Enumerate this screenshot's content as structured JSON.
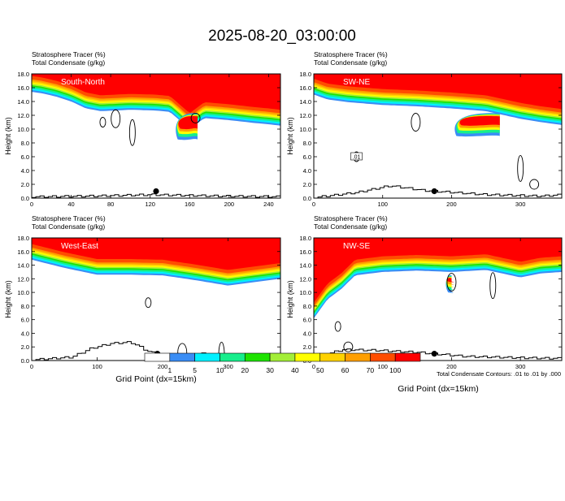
{
  "title": "2025-08-20_03:00:00",
  "legend_colorbar": {
    "colors": [
      "#ffffff",
      "#3a8df5",
      "#00f0ff",
      "#17ee8c",
      "#1ee300",
      "#a3ee38",
      "#ffff00",
      "#ffd200",
      "#ff9f00",
      "#ff4d00",
      "#ff0000"
    ],
    "labels": [
      "1",
      "5",
      "10",
      "20",
      "30",
      "40",
      "50",
      "60",
      "70",
      "100"
    ]
  },
  "footnote": "Total Condensate Contours: .01 to .01 by .000",
  "xlabel": "Grid Point (dx=15km)",
  "chart_data": [
    {
      "type": "heatmap",
      "label": "South-North",
      "field_line1": "Stratosphere Tracer   (%)",
      "field_line2": "Total Condensate   (g/kg)",
      "ylabel": "Height (km)",
      "xlim": [
        0,
        252
      ],
      "ylim": [
        0,
        18
      ],
      "x_ticks": [
        "0",
        "40",
        "80",
        "120",
        "160",
        "200",
        "240"
      ],
      "x_tick_values": [
        0,
        40,
        80,
        120,
        160,
        200,
        240
      ],
      "y_ticks": [
        "0.0",
        "2.0",
        "4.0",
        "6.0",
        "8.0",
        "10.0",
        "12.0",
        "14.0",
        "16.0",
        "18.0"
      ],
      "tracer_base_km": [
        [
          0,
          15.4
        ],
        [
          10,
          15.2
        ],
        [
          25,
          14.7
        ],
        [
          40,
          14.0
        ],
        [
          55,
          13.0
        ],
        [
          70,
          12.6
        ],
        [
          100,
          12.8
        ],
        [
          125,
          12.7
        ],
        [
          140,
          12.5
        ],
        [
          160,
          10.0
        ],
        [
          175,
          11.6
        ],
        [
          200,
          11.3
        ],
        [
          225,
          10.9
        ],
        [
          240,
          10.7
        ],
        [
          252,
          10.5
        ]
      ],
      "tongue": {
        "x": [
          143,
          168
        ],
        "top_km": 12.3,
        "bottom_km": 8.5
      },
      "terrain_km": [
        [
          0,
          0.2
        ],
        [
          60,
          0.3
        ],
        [
          120,
          0.5
        ],
        [
          190,
          0.3
        ],
        [
          252,
          0.2
        ]
      ],
      "marker": {
        "x": 126,
        "y_km": 1.0
      },
      "condensate_contours": [
        {
          "x": 72,
          "y_km": 11.0
        },
        {
          "x": 85,
          "y_km": 11.5
        },
        {
          "x": 102,
          "y_km": 9.5
        },
        {
          "x": 166,
          "y_km": 11.6
        }
      ]
    },
    {
      "type": "heatmap",
      "label": "SW-NE",
      "field_line1": "Stratosphere Tracer   (%)",
      "field_line2": "Total Condensate   (g/kg)",
      "ylabel": "Height (km)",
      "xlim": [
        0,
        360
      ],
      "ylim": [
        0,
        18
      ],
      "x_ticks": [
        "0",
        "100",
        "200",
        "300"
      ],
      "x_tick_values": [
        0,
        100,
        200,
        300
      ],
      "y_ticks": [
        "0.0",
        "2.0",
        "4.0",
        "6.0",
        "8.0",
        "10.0",
        "12.0",
        "14.0",
        "16.0",
        "18.0"
      ],
      "tracer_base_km": [
        [
          0,
          15.0
        ],
        [
          20,
          14.3
        ],
        [
          50,
          13.9
        ],
        [
          100,
          13.5
        ],
        [
          150,
          13.3
        ],
        [
          200,
          13.0
        ],
        [
          250,
          12.6
        ],
        [
          300,
          11.5
        ],
        [
          330,
          11.0
        ],
        [
          360,
          10.6
        ]
      ],
      "tongue": {
        "x": [
          200,
          270
        ],
        "top_km": 12.3,
        "bottom_km": 9.0
      },
      "terrain_km": [
        [
          0,
          0.1
        ],
        [
          60,
          0.8
        ],
        [
          110,
          1.8
        ],
        [
          160,
          1.1
        ],
        [
          250,
          0.5
        ],
        [
          330,
          0.3
        ],
        [
          360,
          0.5
        ]
      ],
      "marker": {
        "x": 175,
        "y_km": 1.0
      },
      "condensate_contours": [
        {
          "x": 62,
          "y_km": 6.0,
          "label": ".01"
        },
        {
          "x": 148,
          "y_km": 11.0
        },
        {
          "x": 300,
          "y_km": 4.3
        },
        {
          "x": 320,
          "y_km": 2.0
        }
      ]
    },
    {
      "type": "heatmap",
      "label": "West-East",
      "field_line1": "Stratosphere Tracer   (%)",
      "field_line2": "Total Condensate   (g/kg)",
      "ylabel": "Height (km)",
      "xlim": [
        0,
        380
      ],
      "ylim": [
        0,
        18
      ],
      "x_ticks": [
        "0",
        "100",
        "200",
        "300"
      ],
      "x_tick_values": [
        0,
        100,
        200,
        300
      ],
      "y_ticks": [
        "0.0",
        "2.0",
        "4.0",
        "6.0",
        "8.0",
        "10.0",
        "12.0",
        "14.0",
        "16.0",
        "18.0"
      ],
      "tracer_base_km": [
        [
          0,
          14.8
        ],
        [
          50,
          13.6
        ],
        [
          100,
          12.6
        ],
        [
          150,
          12.6
        ],
        [
          200,
          12.5
        ],
        [
          250,
          11.8
        ],
        [
          300,
          11.0
        ],
        [
          340,
          11.5
        ],
        [
          380,
          12.0
        ]
      ],
      "tongue": null,
      "terrain_km": [
        [
          0,
          0.1
        ],
        [
          60,
          0.5
        ],
        [
          90,
          1.8
        ],
        [
          120,
          2.5
        ],
        [
          150,
          2.7
        ],
        [
          180,
          1.2
        ],
        [
          220,
          0.6
        ],
        [
          260,
          1.0
        ],
        [
          300,
          0.6
        ],
        [
          380,
          0.2
        ]
      ],
      "marker": {
        "x": 192,
        "y_km": 1.0
      },
      "condensate_contours": [
        {
          "x": 178,
          "y_km": 8.5
        },
        {
          "x": 230,
          "y_km": 1.2
        },
        {
          "x": 290,
          "y_km": 0.8
        }
      ]
    },
    {
      "type": "heatmap",
      "label": "NW-SE",
      "field_line1": "Stratosphere Tracer   (%)",
      "field_line2": "Total Condensate   (g/kg)",
      "ylabel": "Height (km)",
      "xlim": [
        0,
        360
      ],
      "ylim": [
        0,
        18
      ],
      "x_ticks": [
        "0",
        "100",
        "200",
        "300"
      ],
      "x_tick_values": [
        0,
        100,
        200,
        300
      ],
      "y_ticks": [
        "0.0",
        "2.0",
        "4.0",
        "6.0",
        "8.0",
        "10.0",
        "12.0",
        "14.0",
        "16.0",
        "18.0"
      ],
      "tracer_base_km": [
        [
          0,
          6.2
        ],
        [
          20,
          9.0
        ],
        [
          40,
          10.5
        ],
        [
          60,
          12.5
        ],
        [
          100,
          13.0
        ],
        [
          150,
          13.2
        ],
        [
          200,
          13.0
        ],
        [
          250,
          13.3
        ],
        [
          300,
          12.2
        ],
        [
          330,
          12.8
        ],
        [
          360,
          13.0
        ]
      ],
      "tongue": {
        "x": [
          188,
          200
        ],
        "top_km": 12.5,
        "bottom_km": 10.0
      },
      "terrain_km": [
        [
          0,
          0.4
        ],
        [
          40,
          1.6
        ],
        [
          90,
          1.5
        ],
        [
          150,
          1.2
        ],
        [
          220,
          0.6
        ],
        [
          300,
          0.4
        ],
        [
          360,
          0.3
        ]
      ],
      "marker": {
        "x": 175,
        "y_km": 1.0
      },
      "condensate_contours": [
        {
          "x": 35,
          "y_km": 5.0
        },
        {
          "x": 200,
          "y_km": 11.5
        },
        {
          "x": 260,
          "y_km": 11.0
        },
        {
          "x": 50,
          "y_km": 2.0
        }
      ]
    }
  ]
}
